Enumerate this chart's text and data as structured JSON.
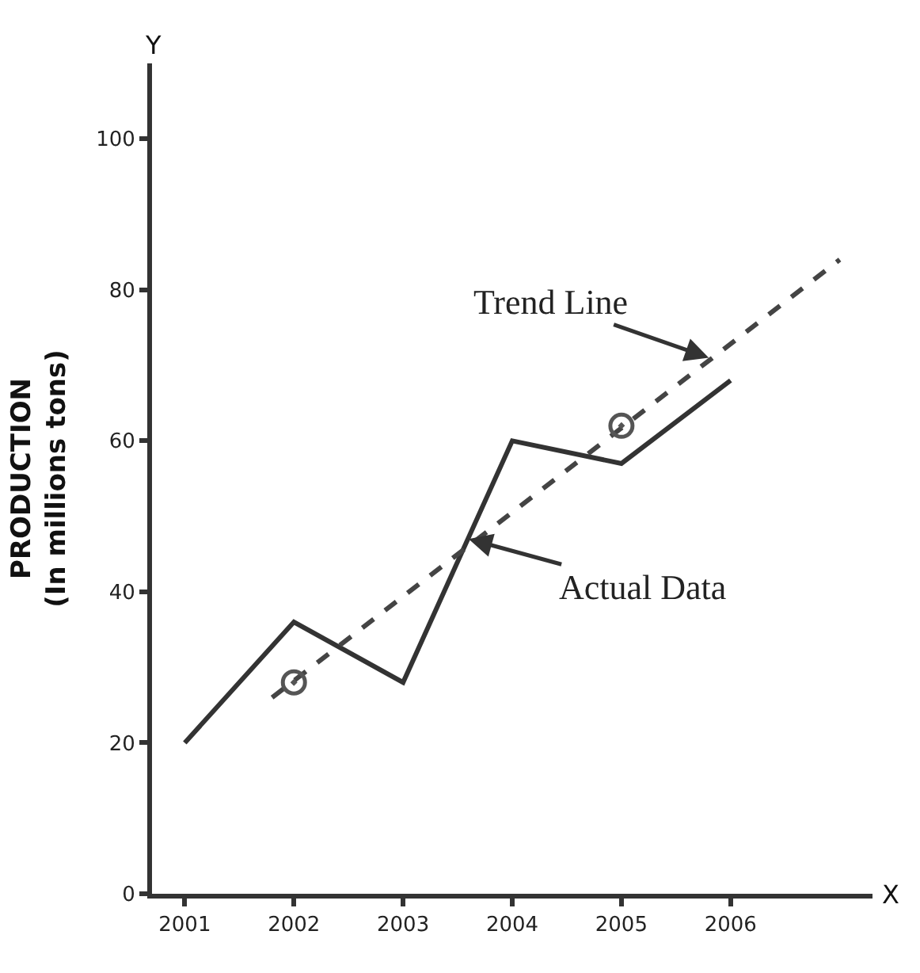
{
  "chart_data": {
    "type": "line",
    "xlabel": "X",
    "ylabel": "PRODUCTION\n(In millions tons)",
    "xlim": [
      2000.7,
      2007.3
    ],
    "xticks": [
      2001,
      2002,
      2003,
      2004,
      2005,
      2006
    ],
    "ylim": [
      0,
      110
    ],
    "yticks": [
      0,
      20,
      40,
      60,
      80,
      100
    ],
    "marker": "none",
    "line_style": "solid",
    "series": [
      {
        "color": "#333333",
        "x": [
          2001,
          2002,
          2003,
          2004,
          2005,
          2006
        ],
        "values": [
          20,
          36,
          28,
          60,
          57,
          68
        ]
      },
      {
        "type": "line",
        "color": "#444444",
        "line_style": "dashed",
        "x": [
          2001.8,
          2007.0
        ],
        "values": [
          26,
          84
        ]
      },
      {
        "type": "scatter",
        "color": "#555555",
        "marker": "circle",
        "x": [
          2002,
          2005
        ],
        "values": [
          28,
          62
        ]
      }
    ],
    "annotations": [
      {
        "text": "Trend Line",
        "x": 2005.8,
        "y": 71
      },
      {
        "text": "Actual Data",
        "x": 2003.6,
        "y": 47
      },
      "Y"
    ]
  }
}
